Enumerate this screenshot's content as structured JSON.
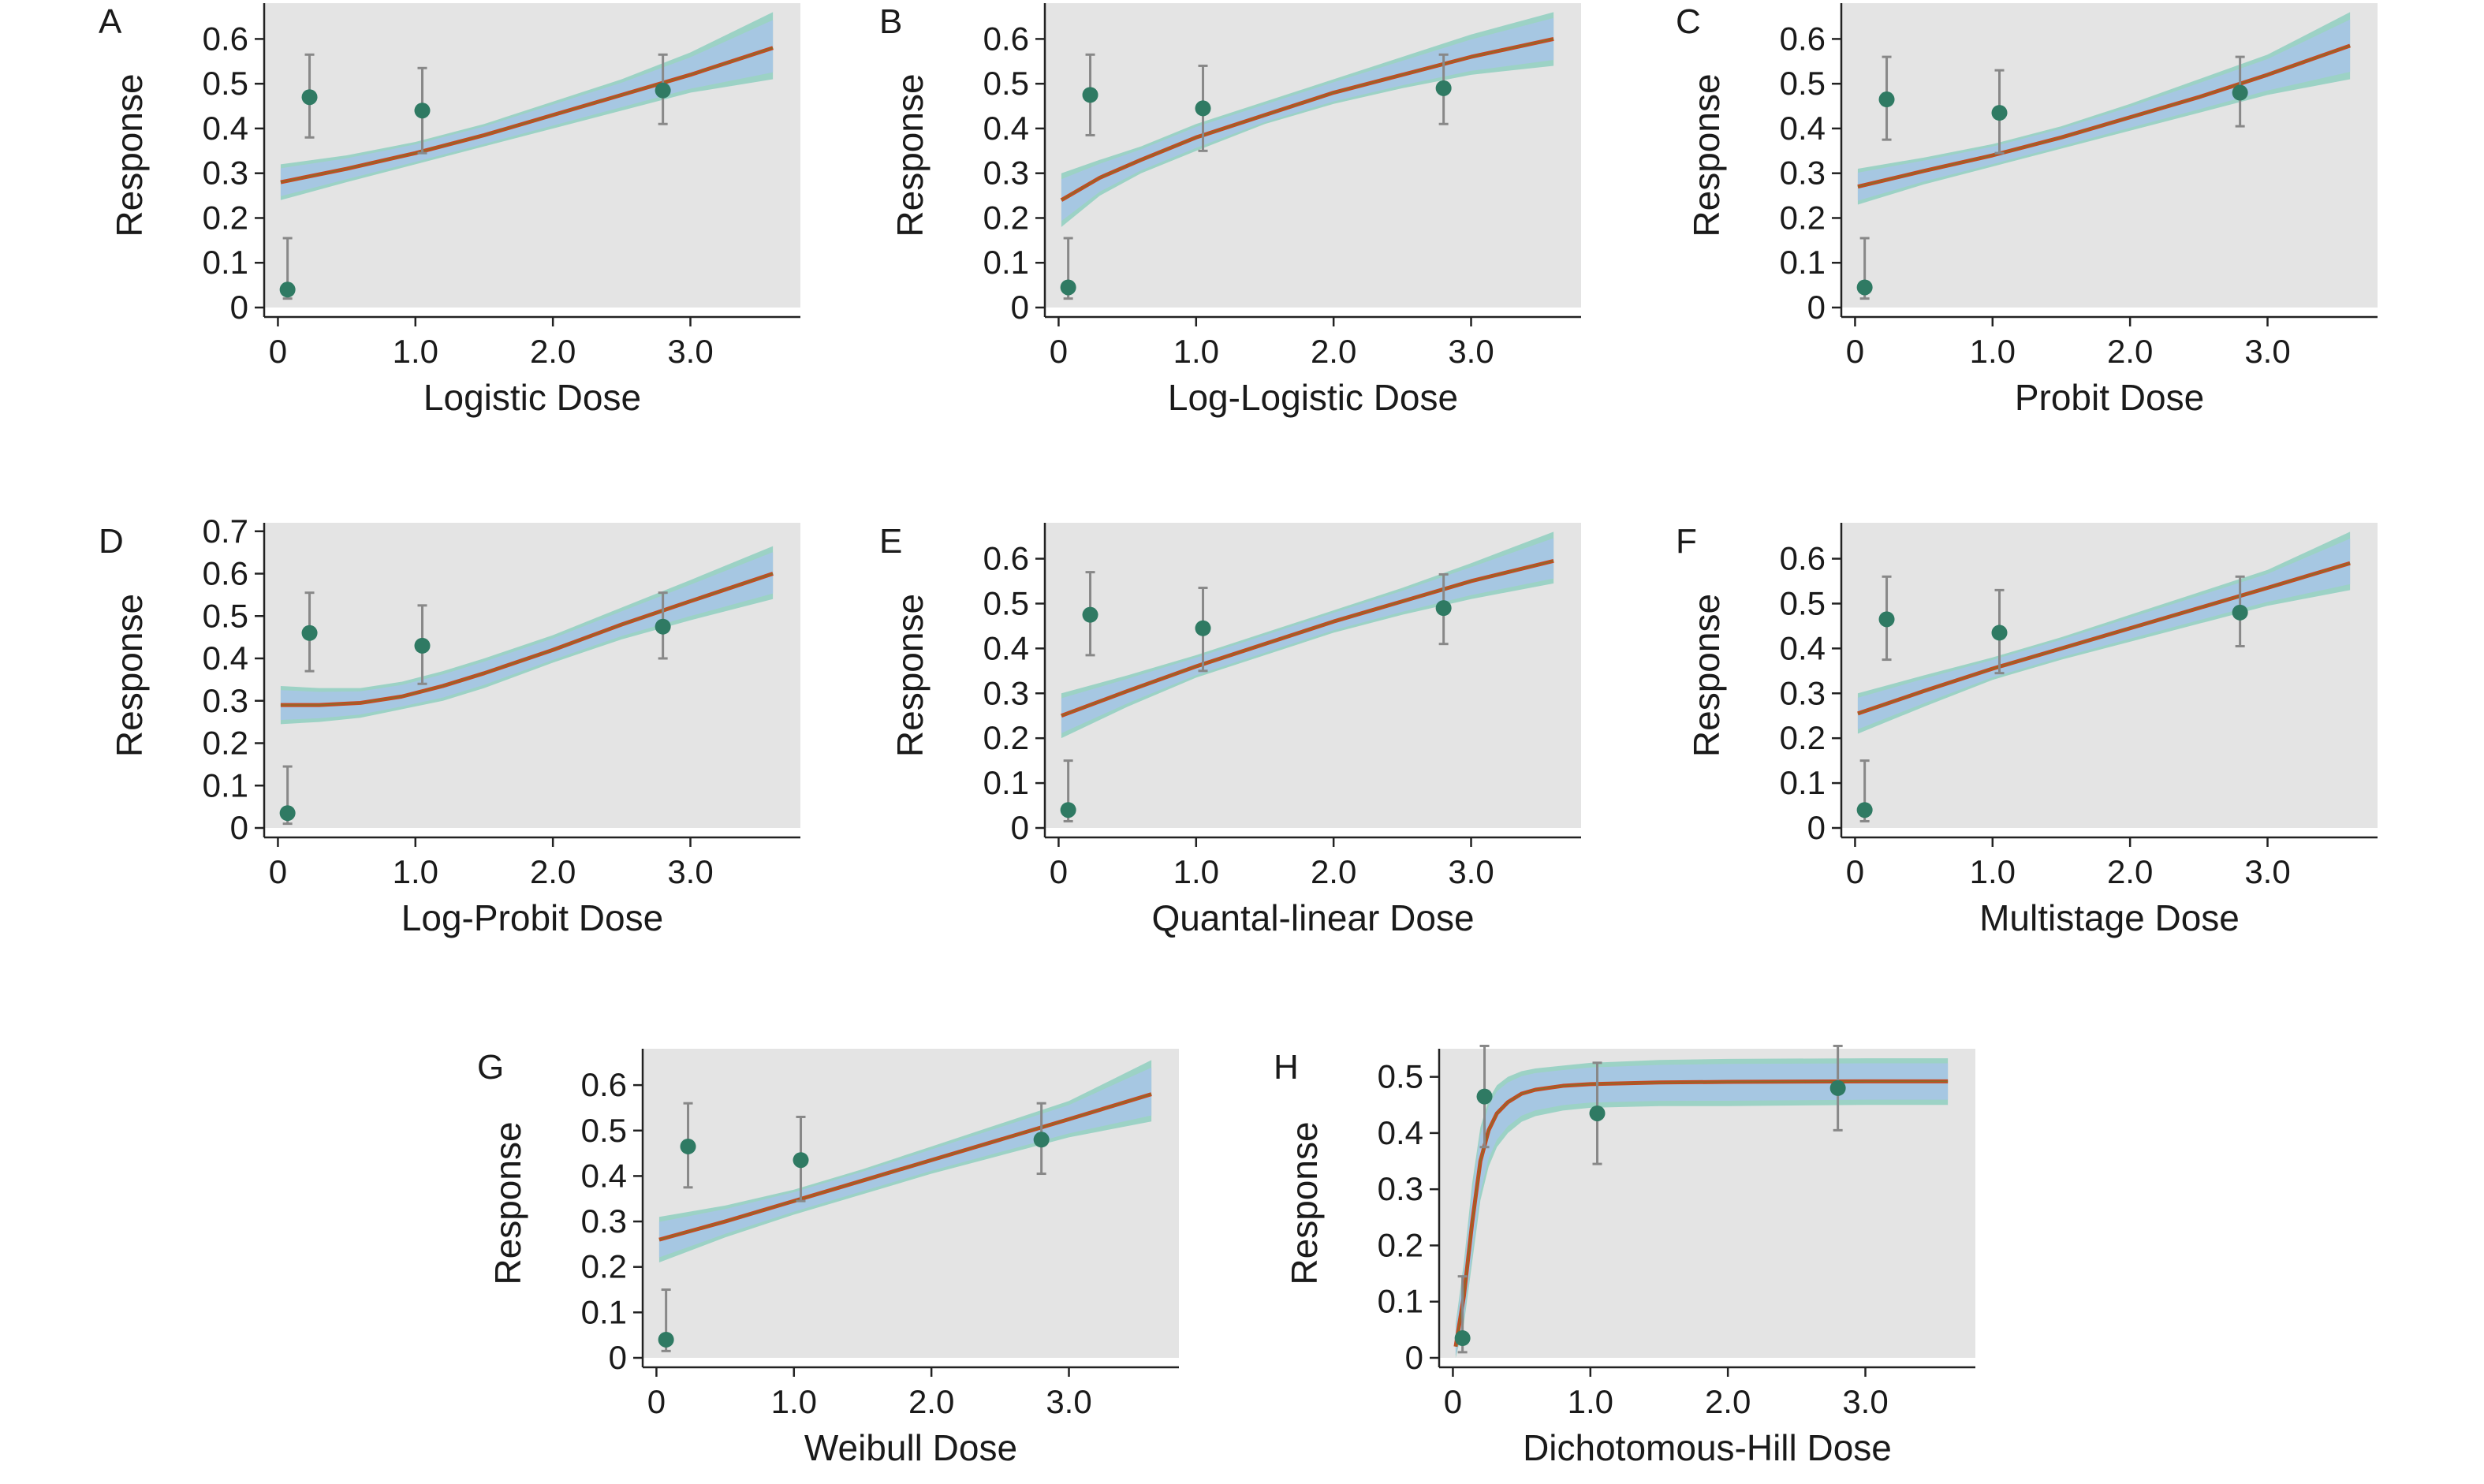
{
  "colors": {
    "panel_bg": "#e4e4e4",
    "band_outer": "#8fcfc0",
    "band_inner": "#a7c6e4",
    "fit_line": "#c44a22",
    "fit_line_core": "#8a6d2b",
    "point": "#2f7a63",
    "error_bar": "#888888",
    "axis": "#222222"
  },
  "chart_data": [
    {
      "id": "A",
      "type": "scatter",
      "letter": "A",
      "xlabel": "Logistic Dose",
      "ylabel": "Response",
      "xlim": [
        -0.1,
        3.8
      ],
      "ylim": [
        0,
        0.68
      ],
      "xticks": [
        0,
        1.0,
        2.0,
        3.0
      ],
      "xtick_labels": [
        "0",
        "1.0",
        "2.0",
        "3.0"
      ],
      "yticks": [
        0,
        0.1,
        0.2,
        0.3,
        0.4,
        0.5,
        0.6
      ],
      "ytick_labels": [
        "0",
        "0.1",
        "0.2",
        "0.3",
        "0.4",
        "0.5",
        "0.6"
      ],
      "points": [
        {
          "x": 0.07,
          "y": 0.04,
          "lo": 0.02,
          "hi": 0.155
        },
        {
          "x": 0.23,
          "y": 0.47,
          "lo": 0.38,
          "hi": 0.565
        },
        {
          "x": 1.05,
          "y": 0.44,
          "lo": 0.345,
          "hi": 0.535
        },
        {
          "x": 2.8,
          "y": 0.485,
          "lo": 0.41,
          "hi": 0.565
        }
      ],
      "fit": {
        "x": [
          0.02,
          0.5,
          1.0,
          1.5,
          2.0,
          2.5,
          3.0,
          3.6
        ],
        "y": [
          0.28,
          0.31,
          0.345,
          0.385,
          0.43,
          0.475,
          0.52,
          0.58
        ],
        "lo": [
          0.24,
          0.28,
          0.32,
          0.36,
          0.4,
          0.44,
          0.48,
          0.51
        ],
        "hi": [
          0.32,
          0.34,
          0.37,
          0.41,
          0.46,
          0.51,
          0.57,
          0.66
        ]
      }
    },
    {
      "id": "B",
      "type": "scatter",
      "letter": "B",
      "xlabel": "Log-Logistic Dose",
      "ylabel": "Response",
      "xlim": [
        -0.1,
        3.8
      ],
      "ylim": [
        0,
        0.68
      ],
      "xticks": [
        0,
        1.0,
        2.0,
        3.0
      ],
      "xtick_labels": [
        "0",
        "1.0",
        "2.0",
        "3.0"
      ],
      "yticks": [
        0,
        0.1,
        0.2,
        0.3,
        0.4,
        0.5,
        0.6
      ],
      "ytick_labels": [
        "0",
        "0.1",
        "0.2",
        "0.3",
        "0.4",
        "0.5",
        "0.6"
      ],
      "points": [
        {
          "x": 0.07,
          "y": 0.045,
          "lo": 0.02,
          "hi": 0.155
        },
        {
          "x": 0.23,
          "y": 0.475,
          "lo": 0.385,
          "hi": 0.565
        },
        {
          "x": 1.05,
          "y": 0.445,
          "lo": 0.35,
          "hi": 0.54
        },
        {
          "x": 2.8,
          "y": 0.49,
          "lo": 0.41,
          "hi": 0.565
        }
      ],
      "fit": {
        "x": [
          0.02,
          0.3,
          0.6,
          1.0,
          1.5,
          2.0,
          2.5,
          3.0,
          3.6
        ],
        "y": [
          0.24,
          0.29,
          0.33,
          0.38,
          0.43,
          0.48,
          0.52,
          0.56,
          0.6
        ],
        "lo": [
          0.18,
          0.25,
          0.3,
          0.35,
          0.41,
          0.455,
          0.49,
          0.52,
          0.54
        ],
        "hi": [
          0.3,
          0.33,
          0.36,
          0.41,
          0.46,
          0.51,
          0.56,
          0.61,
          0.66
        ]
      }
    },
    {
      "id": "C",
      "type": "scatter",
      "letter": "C",
      "xlabel": "Probit Dose",
      "ylabel": "Response",
      "xlim": [
        -0.1,
        3.8
      ],
      "ylim": [
        0,
        0.68
      ],
      "xticks": [
        0,
        1.0,
        2.0,
        3.0
      ],
      "xtick_labels": [
        "0",
        "1.0",
        "2.0",
        "3.0"
      ],
      "yticks": [
        0,
        0.1,
        0.2,
        0.3,
        0.4,
        0.5,
        0.6
      ],
      "ytick_labels": [
        "0",
        "0.1",
        "0.2",
        "0.3",
        "0.4",
        "0.5",
        "0.6"
      ],
      "points": [
        {
          "x": 0.07,
          "y": 0.045,
          "lo": 0.02,
          "hi": 0.155
        },
        {
          "x": 0.23,
          "y": 0.465,
          "lo": 0.375,
          "hi": 0.56
        },
        {
          "x": 1.05,
          "y": 0.435,
          "lo": 0.345,
          "hi": 0.53
        },
        {
          "x": 2.8,
          "y": 0.48,
          "lo": 0.405,
          "hi": 0.56
        }
      ],
      "fit": {
        "x": [
          0.02,
          0.5,
          1.0,
          1.5,
          2.0,
          2.5,
          3.0,
          3.6
        ],
        "y": [
          0.27,
          0.305,
          0.34,
          0.38,
          0.425,
          0.47,
          0.52,
          0.585
        ],
        "lo": [
          0.23,
          0.275,
          0.315,
          0.355,
          0.395,
          0.435,
          0.475,
          0.51
        ],
        "hi": [
          0.31,
          0.335,
          0.365,
          0.405,
          0.455,
          0.51,
          0.565,
          0.66
        ]
      }
    },
    {
      "id": "D",
      "type": "scatter",
      "letter": "D",
      "xlabel": "Log-Probit Dose",
      "ylabel": "Response",
      "xlim": [
        -0.1,
        3.8
      ],
      "ylim": [
        0,
        0.72
      ],
      "xticks": [
        0,
        1.0,
        2.0,
        3.0
      ],
      "xtick_labels": [
        "0",
        "1.0",
        "2.0",
        "3.0"
      ],
      "yticks": [
        0,
        0.1,
        0.2,
        0.3,
        0.4,
        0.5,
        0.6,
        0.7
      ],
      "ytick_labels": [
        "0",
        "0.1",
        "0.2",
        "0.3",
        "0.4",
        "0.5",
        "0.6",
        "0.7"
      ],
      "points": [
        {
          "x": 0.07,
          "y": 0.035,
          "lo": 0.01,
          "hi": 0.145
        },
        {
          "x": 0.23,
          "y": 0.46,
          "lo": 0.37,
          "hi": 0.555
        },
        {
          "x": 1.05,
          "y": 0.43,
          "lo": 0.34,
          "hi": 0.525
        },
        {
          "x": 2.8,
          "y": 0.475,
          "lo": 0.4,
          "hi": 0.555
        }
      ],
      "fit": {
        "x": [
          0.02,
          0.3,
          0.6,
          0.9,
          1.2,
          1.5,
          2.0,
          2.5,
          3.0,
          3.6
        ],
        "y": [
          0.29,
          0.29,
          0.295,
          0.31,
          0.335,
          0.365,
          0.42,
          0.48,
          0.535,
          0.6
        ],
        "lo": [
          0.245,
          0.25,
          0.26,
          0.28,
          0.3,
          0.33,
          0.39,
          0.445,
          0.49,
          0.54
        ],
        "hi": [
          0.335,
          0.33,
          0.33,
          0.345,
          0.37,
          0.4,
          0.455,
          0.52,
          0.585,
          0.665
        ]
      }
    },
    {
      "id": "E",
      "type": "scatter",
      "letter": "E",
      "xlabel": "Quantal-linear Dose",
      "ylabel": "Response",
      "xlim": [
        -0.1,
        3.8
      ],
      "ylim": [
        0,
        0.68
      ],
      "xticks": [
        0,
        1.0,
        2.0,
        3.0
      ],
      "xtick_labels": [
        "0",
        "1.0",
        "2.0",
        "3.0"
      ],
      "yticks": [
        0,
        0.1,
        0.2,
        0.3,
        0.4,
        0.5,
        0.6
      ],
      "ytick_labels": [
        "0",
        "0.1",
        "0.2",
        "0.3",
        "0.4",
        "0.5",
        "0.6"
      ],
      "points": [
        {
          "x": 0.07,
          "y": 0.04,
          "lo": 0.015,
          "hi": 0.15
        },
        {
          "x": 0.23,
          "y": 0.475,
          "lo": 0.385,
          "hi": 0.57
        },
        {
          "x": 1.05,
          "y": 0.445,
          "lo": 0.35,
          "hi": 0.535
        },
        {
          "x": 2.8,
          "y": 0.49,
          "lo": 0.41,
          "hi": 0.565
        }
      ],
      "fit": {
        "x": [
          0.02,
          0.5,
          1.0,
          1.5,
          2.0,
          2.5,
          3.0,
          3.6
        ],
        "y": [
          0.25,
          0.305,
          0.36,
          0.41,
          0.46,
          0.505,
          0.55,
          0.595
        ],
        "lo": [
          0.2,
          0.27,
          0.335,
          0.385,
          0.435,
          0.475,
          0.51,
          0.545
        ],
        "hi": [
          0.3,
          0.34,
          0.385,
          0.435,
          0.485,
          0.535,
          0.59,
          0.66
        ]
      }
    },
    {
      "id": "F",
      "type": "scatter",
      "letter": "F",
      "xlabel": "Multistage Dose",
      "ylabel": "Response",
      "xlim": [
        -0.1,
        3.8
      ],
      "ylim": [
        0,
        0.68
      ],
      "xticks": [
        0,
        1.0,
        2.0,
        3.0
      ],
      "xtick_labels": [
        "0",
        "1.0",
        "2.0",
        "3.0"
      ],
      "yticks": [
        0,
        0.1,
        0.2,
        0.3,
        0.4,
        0.5,
        0.6
      ],
      "ytick_labels": [
        "0",
        "0.1",
        "0.2",
        "0.3",
        "0.4",
        "0.5",
        "0.6"
      ],
      "points": [
        {
          "x": 0.07,
          "y": 0.04,
          "lo": 0.015,
          "hi": 0.15
        },
        {
          "x": 0.23,
          "y": 0.465,
          "lo": 0.375,
          "hi": 0.56
        },
        {
          "x": 1.05,
          "y": 0.435,
          "lo": 0.345,
          "hi": 0.53
        },
        {
          "x": 2.8,
          "y": 0.48,
          "lo": 0.405,
          "hi": 0.56
        }
      ],
      "fit": {
        "x": [
          0.02,
          0.5,
          1.0,
          1.5,
          2.0,
          2.5,
          3.0,
          3.6
        ],
        "y": [
          0.255,
          0.305,
          0.355,
          0.4,
          0.445,
          0.49,
          0.535,
          0.59
        ],
        "lo": [
          0.21,
          0.27,
          0.33,
          0.375,
          0.415,
          0.455,
          0.495,
          0.53
        ],
        "hi": [
          0.3,
          0.34,
          0.38,
          0.425,
          0.475,
          0.525,
          0.575,
          0.66
        ]
      }
    },
    {
      "id": "G",
      "type": "scatter",
      "letter": "G",
      "xlabel": "Weibull Dose",
      "ylabel": "Response",
      "xlim": [
        -0.1,
        3.8
      ],
      "ylim": [
        0,
        0.68
      ],
      "xticks": [
        0,
        1.0,
        2.0,
        3.0
      ],
      "xtick_labels": [
        "0",
        "1.0",
        "2.0",
        "3.0"
      ],
      "yticks": [
        0,
        0.1,
        0.2,
        0.3,
        0.4,
        0.5,
        0.6
      ],
      "ytick_labels": [
        "0",
        "0.1",
        "0.2",
        "0.3",
        "0.4",
        "0.5",
        "0.6"
      ],
      "points": [
        {
          "x": 0.07,
          "y": 0.04,
          "lo": 0.015,
          "hi": 0.15
        },
        {
          "x": 0.23,
          "y": 0.465,
          "lo": 0.375,
          "hi": 0.56
        },
        {
          "x": 1.05,
          "y": 0.435,
          "lo": 0.345,
          "hi": 0.53
        },
        {
          "x": 2.8,
          "y": 0.48,
          "lo": 0.405,
          "hi": 0.56
        }
      ],
      "fit": {
        "x": [
          0.02,
          0.5,
          1.0,
          1.5,
          2.0,
          2.5,
          3.0,
          3.6
        ],
        "y": [
          0.26,
          0.3,
          0.345,
          0.39,
          0.435,
          0.48,
          0.525,
          0.58
        ],
        "lo": [
          0.21,
          0.265,
          0.315,
          0.36,
          0.405,
          0.445,
          0.485,
          0.52
        ],
        "hi": [
          0.31,
          0.335,
          0.37,
          0.415,
          0.465,
          0.515,
          0.565,
          0.655
        ]
      }
    },
    {
      "id": "H",
      "type": "scatter",
      "letter": "H",
      "xlabel": "Dichotomous-Hill Dose",
      "ylabel": "Response",
      "xlim": [
        -0.1,
        3.8
      ],
      "ylim": [
        0,
        0.55
      ],
      "xticks": [
        0,
        1.0,
        2.0,
        3.0
      ],
      "xtick_labels": [
        "0",
        "1.0",
        "2.0",
        "3.0"
      ],
      "yticks": [
        0,
        0.1,
        0.2,
        0.3,
        0.4,
        0.5
      ],
      "ytick_labels": [
        "0",
        "0.1",
        "0.2",
        "0.3",
        "0.4",
        "0.5"
      ],
      "points": [
        {
          "x": 0.07,
          "y": 0.035,
          "lo": 0.01,
          "hi": 0.145
        },
        {
          "x": 0.23,
          "y": 0.465,
          "lo": 0.375,
          "hi": 0.555
        },
        {
          "x": 1.05,
          "y": 0.435,
          "lo": 0.345,
          "hi": 0.525
        },
        {
          "x": 2.8,
          "y": 0.48,
          "lo": 0.405,
          "hi": 0.555
        }
      ],
      "fit": {
        "x": [
          0.02,
          0.08,
          0.14,
          0.2,
          0.26,
          0.32,
          0.4,
          0.5,
          0.6,
          0.8,
          1.0,
          1.5,
          2.0,
          3.0,
          3.6
        ],
        "y": [
          0.02,
          0.11,
          0.24,
          0.35,
          0.405,
          0.435,
          0.455,
          0.47,
          0.477,
          0.484,
          0.487,
          0.49,
          0.491,
          0.492,
          0.492
        ],
        "lo": [
          0.0,
          0.06,
          0.17,
          0.28,
          0.34,
          0.375,
          0.4,
          0.42,
          0.43,
          0.44,
          0.445,
          0.448,
          0.448,
          0.45,
          0.45
        ],
        "hi": [
          0.06,
          0.17,
          0.31,
          0.41,
          0.46,
          0.485,
          0.5,
          0.51,
          0.515,
          0.52,
          0.525,
          0.53,
          0.532,
          0.533,
          0.533
        ]
      }
    }
  ]
}
